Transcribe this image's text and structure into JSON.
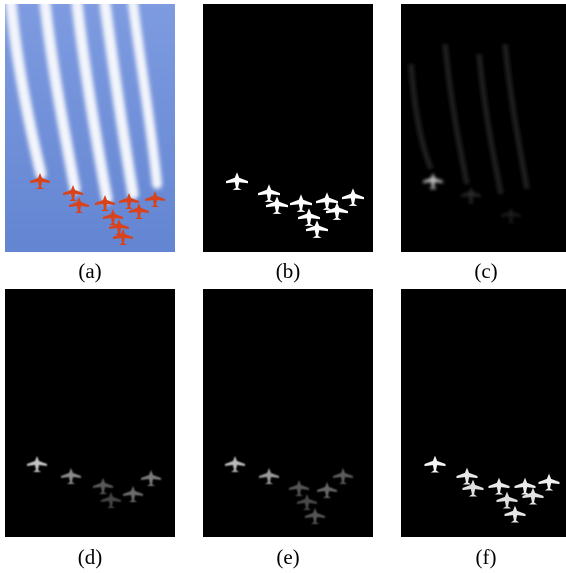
{
  "figure": {
    "panels": [
      {
        "id": "a",
        "caption": "(a)",
        "content": "photo"
      },
      {
        "id": "b",
        "caption": "(b)",
        "content": "ground-truth-mask"
      },
      {
        "id": "c",
        "caption": "(c)",
        "content": "saliency-map"
      },
      {
        "id": "d",
        "caption": "(d)",
        "content": "saliency-map"
      },
      {
        "id": "e",
        "caption": "(e)",
        "content": "saliency-map"
      },
      {
        "id": "f",
        "caption": "(f)",
        "content": "saliency-map"
      }
    ]
  },
  "colors": {
    "sky": "#6f8ed8",
    "smoke": "#f2f4fa",
    "jet": "#d8431c",
    "mask_bg": "#000000",
    "mask_fg": "#ffffff"
  }
}
